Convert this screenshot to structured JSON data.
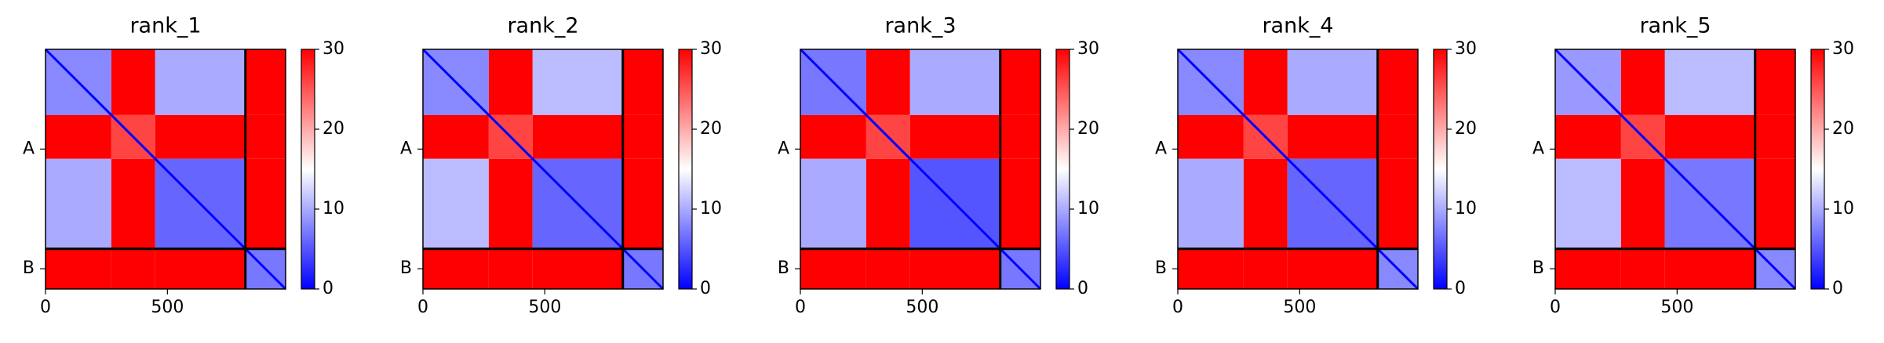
{
  "chart_data": [
    {
      "type": "heatmap",
      "title": "rank_1",
      "edges": [
        0,
        270,
        450,
        820,
        985
      ],
      "xlim": [
        0,
        985
      ],
      "ylim": [
        985,
        0
      ],
      "xticks": [
        0,
        500
      ],
      "yticks": [
        {
          "value": 410,
          "label": "A"
        },
        {
          "value": 902,
          "label": "B"
        }
      ],
      "chain_breaks": [
        820
      ],
      "pae": [
        [
          8,
          30,
          10,
          30
        ],
        [
          30,
          26,
          30,
          30
        ],
        [
          10,
          30,
          6,
          30
        ],
        [
          30,
          30,
          30,
          7
        ]
      ],
      "clim": [
        0,
        30
      ],
      "cticks": [
        0,
        10,
        20,
        30
      ],
      "cmap": "bwr"
    },
    {
      "type": "heatmap",
      "title": "rank_2",
      "edges": [
        0,
        270,
        450,
        820,
        985
      ],
      "xlim": [
        0,
        985
      ],
      "ylim": [
        985,
        0
      ],
      "xticks": [
        0,
        500
      ],
      "yticks": [
        {
          "value": 410,
          "label": "A"
        },
        {
          "value": 902,
          "label": "B"
        }
      ],
      "chain_breaks": [
        820
      ],
      "pae": [
        [
          8,
          30,
          11,
          30
        ],
        [
          30,
          26,
          30,
          30
        ],
        [
          11,
          30,
          6,
          30
        ],
        [
          30,
          30,
          30,
          7
        ]
      ],
      "clim": [
        0,
        30
      ],
      "cticks": [
        0,
        10,
        20,
        30
      ],
      "cmap": "bwr"
    },
    {
      "type": "heatmap",
      "title": "rank_3",
      "edges": [
        0,
        270,
        450,
        820,
        985
      ],
      "xlim": [
        0,
        985
      ],
      "ylim": [
        985,
        0
      ],
      "xticks": [
        0,
        500
      ],
      "yticks": [
        {
          "value": 410,
          "label": "A"
        },
        {
          "value": 902,
          "label": "B"
        }
      ],
      "chain_breaks": [
        820
      ],
      "pae": [
        [
          7,
          30,
          10,
          30
        ],
        [
          30,
          26,
          30,
          30
        ],
        [
          10,
          30,
          5,
          30
        ],
        [
          30,
          30,
          30,
          7
        ]
      ],
      "clim": [
        0,
        30
      ],
      "cticks": [
        0,
        10,
        20,
        30
      ],
      "cmap": "bwr"
    },
    {
      "type": "heatmap",
      "title": "rank_4",
      "edges": [
        0,
        270,
        450,
        820,
        985
      ],
      "xlim": [
        0,
        985
      ],
      "ylim": [
        985,
        0
      ],
      "xticks": [
        0,
        500
      ],
      "yticks": [
        {
          "value": 410,
          "label": "A"
        },
        {
          "value": 902,
          "label": "B"
        }
      ],
      "chain_breaks": [
        820
      ],
      "pae": [
        [
          8,
          30,
          10,
          30
        ],
        [
          30,
          26,
          30,
          30
        ],
        [
          10,
          30,
          6,
          30
        ],
        [
          30,
          30,
          30,
          8
        ]
      ],
      "clim": [
        0,
        30
      ],
      "cticks": [
        0,
        10,
        20,
        30
      ],
      "cmap": "bwr"
    },
    {
      "type": "heatmap",
      "title": "rank_5",
      "edges": [
        0,
        270,
        450,
        820,
        985
      ],
      "xlim": [
        0,
        985
      ],
      "ylim": [
        985,
        0
      ],
      "xticks": [
        0,
        500
      ],
      "yticks": [
        {
          "value": 410,
          "label": "A"
        },
        {
          "value": 902,
          "label": "B"
        }
      ],
      "chain_breaks": [
        820
      ],
      "pae": [
        [
          9,
          30,
          11,
          30
        ],
        [
          30,
          26,
          30,
          30
        ],
        [
          11,
          30,
          7,
          30
        ],
        [
          30,
          30,
          30,
          8
        ]
      ],
      "clim": [
        0,
        30
      ],
      "cticks": [
        0,
        10,
        20,
        30
      ],
      "cmap": "bwr"
    }
  ]
}
